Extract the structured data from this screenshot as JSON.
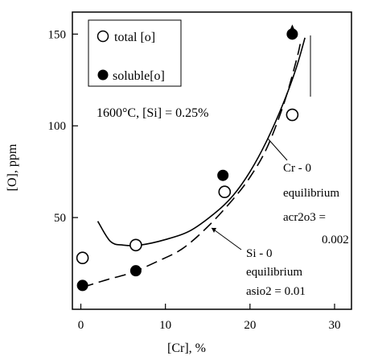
{
  "chart_data": {
    "type": "scatter",
    "xlabel": "[Cr], %",
    "ylabel": "[O], ppm",
    "xlim": [
      -1,
      32
    ],
    "ylim": [
      0,
      162
    ],
    "x_ticks": [
      0,
      10,
      20,
      30
    ],
    "y_ticks": [
      50,
      100,
      150
    ],
    "x_tick_labels": [
      "0",
      "10",
      "20",
      "30"
    ],
    "y_tick_labels": [
      "50",
      "100",
      "150"
    ],
    "grid": false,
    "legend_position": "top-left",
    "condition_label": "1600°C, [Si] = 0.25%",
    "series": [
      {
        "name": "total [o]",
        "marker": "open-circle",
        "points": [
          {
            "x": 0.2,
            "y": 28
          },
          {
            "x": 6.5,
            "y": 35
          },
          {
            "x": 17.0,
            "y": 64
          },
          {
            "x": 25.0,
            "y": 106
          }
        ]
      },
      {
        "name": "soluble[o]",
        "marker": "filled-circle",
        "points": [
          {
            "x": 0.2,
            "y": 13
          },
          {
            "x": 6.5,
            "y": 21
          },
          {
            "x": 16.8,
            "y": 73
          },
          {
            "x": 25.0,
            "y": 150
          }
        ]
      }
    ],
    "curves": [
      {
        "style": "solid",
        "label_lines": [
          "Cr - 0",
          "equilibrium",
          "acr2o3 =",
          "0.002"
        ],
        "points": [
          [
            2.0,
            48
          ],
          [
            3.5,
            37
          ],
          [
            5.0,
            35
          ],
          [
            7.0,
            35
          ],
          [
            10.0,
            38
          ],
          [
            13.0,
            43
          ],
          [
            16.0,
            53
          ],
          [
            18.0,
            62
          ],
          [
            20.0,
            75
          ],
          [
            22.0,
            92
          ],
          [
            24.0,
            113
          ],
          [
            25.5,
            132
          ],
          [
            26.5,
            148
          ]
        ]
      },
      {
        "style": "dashed",
        "label_lines": [
          "Si - 0",
          "equilibrium",
          "asio2 = 0.01"
        ],
        "points": [
          [
            0.2,
            12
          ],
          [
            3.0,
            16
          ],
          [
            6.0,
            20
          ],
          [
            9.0,
            26
          ],
          [
            12.0,
            33
          ],
          [
            15.0,
            45
          ],
          [
            18.0,
            60
          ],
          [
            20.0,
            72
          ],
          [
            22.0,
            88
          ],
          [
            24.0,
            112
          ],
          [
            25.5,
            136
          ],
          [
            26.0,
            146
          ]
        ]
      }
    ]
  }
}
